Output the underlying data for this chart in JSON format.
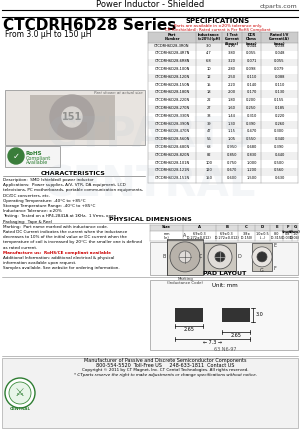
{
  "bg_color": "#ffffff",
  "title_text": "Power Inductor - Shielded",
  "website_text": "ctparts.com",
  "series_title": "CTCDRH6D28 Series",
  "series_subtitle": "From 3.0 μH to 150 μH",
  "spec_title": "SPECIFICATIONS",
  "spec_note1": "Parts are available in ±20% tolerance only.",
  "spec_note2": "CR (Unshielded): Rated current is Per RoHS Compliant",
  "spec_data": [
    [
      "CTCDRH6D28-3R0N",
      "3.0",
      "4.10",
      "0.044",
      "0.038"
    ],
    [
      "CTCDRH6D28-4R7N",
      "4.7",
      "3.80",
      "0.055",
      "0.048"
    ],
    [
      "CTCDRH6D28-6R8N",
      "6.8",
      "3.20",
      "0.071",
      "0.055"
    ],
    [
      "CTCDRH6D28-100N",
      "10",
      "2.80",
      "0.098",
      "0.079"
    ],
    [
      "CTCDRH6D28-120N",
      "12",
      "2.50",
      "0.110",
      "0.088"
    ],
    [
      "CTCDRH6D28-150N",
      "15",
      "2.20",
      "0.140",
      "0.110"
    ],
    [
      "CTCDRH6D28-180N",
      "18",
      "2.00",
      "0.170",
      "0.130"
    ],
    [
      "CTCDRH6D28-220N",
      "22",
      "1.80",
      "0.200",
      "0.155"
    ],
    [
      "CTCDRH6D28-270N",
      "27",
      "1.60",
      "0.250",
      "0.185"
    ],
    [
      "CTCDRH6D28-330N",
      "33",
      "1.44",
      "0.310",
      "0.220"
    ],
    [
      "CTCDRH6D28-390N",
      "39",
      "1.30",
      "0.390",
      "0.260"
    ],
    [
      "CTCDRH6D28-470N",
      "47",
      "1.15",
      "0.470",
      "0.300"
    ],
    [
      "CTCDRH6D28-560N",
      "56",
      "1.05",
      "0.550",
      "0.340"
    ],
    [
      "CTCDRH6D28-680N",
      "68",
      "0.950",
      "0.680",
      "0.390"
    ],
    [
      "CTCDRH6D28-820N",
      "82",
      "0.850",
      "0.830",
      "0.440"
    ],
    [
      "CTCDRH6D28-101N",
      "100",
      "0.750",
      "1.000",
      "0.500"
    ],
    [
      "CTCDRH6D28-121N",
      "120",
      "0.670",
      "1.200",
      "0.560"
    ],
    [
      "CTCDRH6D28-151N",
      "150",
      "0.600",
      "1.500",
      "0.630"
    ]
  ],
  "col_headers": [
    "Part\nNumber",
    "Inductance\n(±20%)(µH)",
    "I Test\nCurrent\n(Amps)",
    "DCR\nOhms\n(max)",
    "Rated I/V\nCurrent(A)\n(max)"
  ],
  "char_title": "CHARACTERISTICS",
  "char_text": [
    "Description:  SMD (shielded) power inductor",
    "Applications:  Power supplies, A/V, VTR, DA equipment, LCD",
    "televisions, PC motherboards, portable communication equipments,",
    "DC/DC converters, etc.",
    "Operating Temperature: -40°C to +85°C",
    "Storage Temperature Range: -40°C to +85°C",
    "Inductance Tolerance: ±20%",
    "Testing:  Tested on a HP4-2841A at 1KHz,  1 Vrms, open",
    "Packaging:  Tape & Reel",
    "Marking:  Part name marked with inductance code.",
    "Rated DC Current indicates the current when the inductance",
    "decreases to 10% of the initial value or DC current when the",
    "temperature of coil is increased by 20°C; the smaller one is defined",
    "as rated current.",
    "Manufacture us:  RoHS/CE compliant available",
    "Additional Information: additional electrical & physical",
    "information available upon request.",
    "Samples available. See website for ordering information."
  ],
  "rohs_line_idx": 14,
  "phys_title": "PHYSICAL DIMENSIONS",
  "phys_headers": [
    "Size",
    "A",
    "B",
    "C",
    "D",
    "E",
    "F\n(mm)",
    "G\n(mm)"
  ],
  "phys_row1": [
    "mm\n(in)",
    "6.9±0.3\n(0.272±0.012)",
    "6.9±0.3\n(0.272±0.012)",
    "3.8±\n(0.150)",
    "1.0±0.5\n(---)",
    "8.0\n(0.315)",
    "0.8\n(0.031)",
    "1.0\n(0.04)"
  ],
  "pad_title": "PAD LAYOUT",
  "pad_unit": "Unit: mm",
  "pad_w": "2.65",
  "pad_total": "7.3",
  "pad_h": "3.0",
  "doc_num": "63 N6-97",
  "footer_mfr": "Manufacturer of Passive and Discrete Semiconductor Components",
  "footer_phone": "800-554-5520  Toll-Free US     248-633-1811  Contact US",
  "footer_copy": "Copyright © 2011 by CT Magnet, Inc. CT Cental Technologies. All rights reserved.",
  "footer_note": "* CTparts reserve the right to make adjustments or change specifications without notice."
}
